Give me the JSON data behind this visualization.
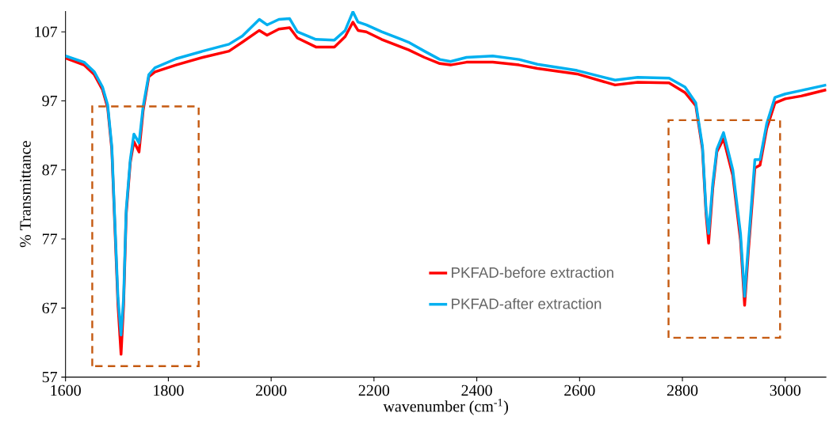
{
  "chart_data": {
    "type": "line",
    "xlabel": "wavenumber (cm$^{-1}$)",
    "ylabel": "% Transmittance",
    "xlim": [
      1600,
      3080
    ],
    "xticks": [
      1600,
      1800,
      2000,
      2200,
      2400,
      2600,
      2800,
      3000
    ],
    "ylim": [
      57,
      110
    ],
    "yticks": [
      57,
      67,
      77,
      87,
      97,
      107
    ],
    "grid": false,
    "legend": "bottom",
    "x": [
      1600,
      1636,
      1656,
      1672,
      1682,
      1690,
      1695,
      1702,
      1708,
      1713,
      1718,
      1726,
      1733,
      1743,
      1751,
      1762,
      1774,
      1815,
      1867,
      1918,
      1944,
      1977,
      1992,
      2015,
      2036,
      2051,
      2087,
      2123,
      2144,
      2159,
      2169,
      2185,
      2215,
      2267,
      2298,
      2328,
      2349,
      2380,
      2431,
      2482,
      2518,
      2595,
      2669,
      2713,
      2774,
      2805,
      2826,
      2839,
      2846,
      2851,
      2859,
      2867,
      2880,
      2898,
      2913,
      2921,
      2928,
      2941,
      2951,
      2964,
      2980,
      3000,
      3031,
      3080
    ],
    "series": [
      {
        "name": "PKFAD-before extraction",
        "color": "#ff0000",
        "values": [
          103.2,
          102.2,
          100.8,
          98.6,
          96.0,
          90.0,
          80.6,
          67.5,
          60.3,
          67.5,
          80.6,
          88.1,
          91.1,
          89.6,
          95.6,
          100.5,
          101.2,
          102.2,
          103.3,
          104.2,
          105.5,
          107.2,
          106.5,
          107.4,
          107.6,
          106.1,
          104.8,
          104.8,
          106.3,
          108.4,
          107.2,
          107.0,
          105.9,
          104.4,
          103.3,
          102.4,
          102.2,
          102.6,
          102.6,
          102.2,
          101.7,
          100.9,
          99.3,
          99.7,
          99.6,
          98.2,
          96.3,
          90.0,
          80.6,
          76.4,
          84.3,
          89.6,
          91.5,
          86.2,
          76.8,
          67.4,
          74.9,
          87.3,
          87.7,
          93.0,
          96.7,
          97.3,
          97.7,
          98.6
        ]
      },
      {
        "name": "PKFAD-after extraction",
        "color": "#00b0f0",
        "values": [
          103.5,
          102.6,
          101.2,
          99.0,
          96.4,
          90.4,
          81.2,
          68.5,
          63.1,
          68.5,
          81.2,
          88.5,
          92.2,
          90.9,
          96.2,
          100.8,
          101.8,
          103.1,
          104.2,
          105.2,
          106.4,
          108.8,
          108.0,
          108.8,
          108.9,
          107.0,
          105.9,
          105.8,
          107.2,
          109.9,
          108.4,
          108.0,
          107.0,
          105.5,
          104.2,
          103.0,
          102.7,
          103.3,
          103.5,
          103.0,
          102.3,
          101.4,
          100.0,
          100.4,
          100.3,
          99.0,
          96.7,
          90.4,
          81.2,
          77.8,
          85.0,
          90.0,
          92.4,
          87.0,
          77.8,
          68.7,
          76.0,
          88.5,
          88.5,
          93.7,
          97.5,
          98.0,
          98.5,
          99.3
        ]
      }
    ]
  }
}
